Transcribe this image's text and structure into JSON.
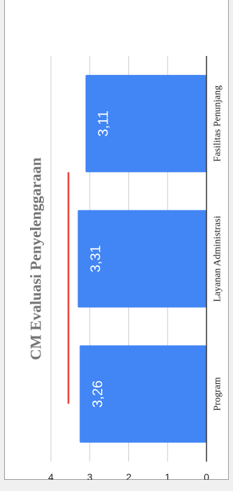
{
  "chart_data": {
    "type": "bar",
    "title": "CM Evaluasi Penyelenggaraan",
    "categories": [
      "Program",
      "Layanan Administrasi",
      "Fasilitas Penunjang"
    ],
    "values": [
      3.26,
      3.31,
      3.11
    ],
    "value_labels": [
      "3,26",
      "3,31",
      "3,11"
    ],
    "ylim": [
      0,
      4
    ],
    "yticks": [
      "0",
      "1",
      "2",
      "3",
      "4"
    ],
    "reference_line": 3.55,
    "grid": true,
    "orientation": "rotated-90",
    "colors": {
      "bar": "#4285f4",
      "reference": "#ea4335",
      "grid": "#cccccc",
      "axis": "#333333",
      "text": "#222222",
      "title": "#757575",
      "value_text": "#ffffff"
    }
  }
}
